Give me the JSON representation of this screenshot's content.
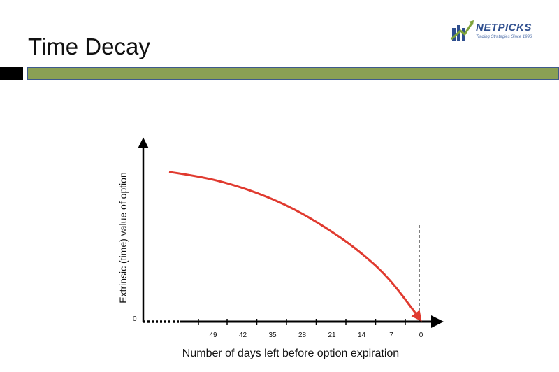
{
  "header": {
    "title": "Time Decay"
  },
  "logo": {
    "name": "NETPICKS",
    "tagline": "Trading Strategies Since 1996",
    "icon": "netpicks-chart-arrow-icon",
    "colors": {
      "blue": "#2f4f8f",
      "green": "#7fa33a"
    }
  },
  "colors": {
    "accent_bar": "#8aa054",
    "accent_border": "#3e5a8c",
    "curve": "#e03a2f"
  },
  "chart_data": {
    "type": "line",
    "xlabel": "Number of days left before option expiration",
    "ylabel": "Extrinsic (time) value of option",
    "y_origin_label": "0",
    "x_ticks": [
      "49",
      "42",
      "35",
      "28",
      "21",
      "14",
      "7",
      "0"
    ],
    "series": [
      {
        "x": [
          56,
          49,
          42,
          35,
          28,
          21,
          14,
          7,
          0
        ],
        "y": [
          0.96,
          0.93,
          0.88,
          0.81,
          0.72,
          0.6,
          0.46,
          0.28,
          0.0
        ]
      }
    ],
    "expiration_marker": "dashed vertical line at 0 days",
    "grid": false,
    "legend": "none"
  }
}
